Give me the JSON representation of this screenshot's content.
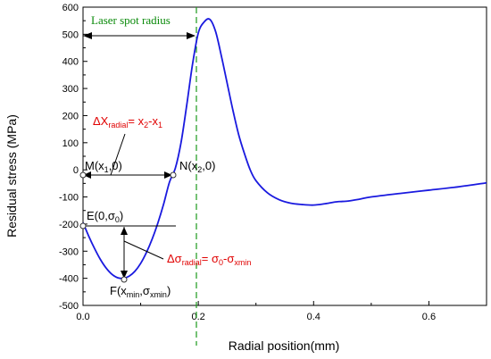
{
  "chart_data": {
    "type": "line",
    "xlabel": "Radial position(mm)",
    "ylabel": "Residual stress (MPa)",
    "xlim": [
      0,
      0.7
    ],
    "ylim": [
      -500,
      600
    ],
    "x_ticks": [
      "0.0",
      "0.2",
      "0.4",
      "0.6"
    ],
    "x_tick_values": [
      0.0,
      0.2,
      0.4,
      0.6
    ],
    "y_ticks": [
      "600",
      "500",
      "400",
      "300",
      "200",
      "100",
      "0",
      "-100",
      "-200",
      "-300",
      "-400",
      "-500"
    ],
    "y_tick_values": [
      600,
      500,
      400,
      300,
      200,
      100,
      0,
      -100,
      -200,
      -300,
      -400,
      -500
    ],
    "grid": false,
    "colors": {
      "series": "#1a1adf",
      "annotation_red": "#e00000",
      "laser_line": "#1a9a1a",
      "axis": "#000000"
    },
    "series": [
      {
        "x": [
          0.0,
          0.01,
          0.02,
          0.03,
          0.04,
          0.05,
          0.06,
          0.07,
          0.08,
          0.09,
          0.1,
          0.11,
          0.12,
          0.13,
          0.14,
          0.15,
          0.16,
          0.17,
          0.18,
          0.19,
          0.2,
          0.21,
          0.22,
          0.23,
          0.24,
          0.25,
          0.26,
          0.27,
          0.28,
          0.29,
          0.3,
          0.32,
          0.34,
          0.36,
          0.38,
          0.4,
          0.42,
          0.44,
          0.46,
          0.48,
          0.5,
          0.55,
          0.6,
          0.65,
          0.7
        ],
        "y": [
          -195,
          -245,
          -290,
          -330,
          -362,
          -385,
          -398,
          -400,
          -392,
          -374,
          -345,
          -305,
          -255,
          -195,
          -125,
          -45,
          5,
          100,
          240,
          390,
          505,
          545,
          555,
          510,
          420,
          320,
          220,
          130,
          60,
          0,
          -40,
          -85,
          -110,
          -123,
          -128,
          -130,
          -125,
          -118,
          -115,
          -108,
          -100,
          -87,
          -75,
          -63,
          -48
        ]
      }
    ],
    "annotations": {
      "laser_spot": {
        "label": "Laser spot radius",
        "x": 0.2
      },
      "delta_x": {
        "prefix": "ΔX",
        "prefix_sub": "radial",
        "eq": "= x",
        "x2_sub": "2",
        "mid": "-x",
        "x1_sub": "1"
      },
      "point_m": {
        "label": "M(x",
        "sub": "1",
        "tail": ",0)",
        "x": 0.0,
        "y": 0
      },
      "point_n": {
        "label": "N(x",
        "sub": "2",
        "tail": ",0)",
        "x": 0.16,
        "y": 0
      },
      "point_e": {
        "label": "E(0,σ",
        "sub": "0",
        "tail": ")",
        "x": 0.0,
        "y": -195
      },
      "point_f": {
        "label": "F(x",
        "sub1": "min",
        "mid": ",σ",
        "sub2": "xmin",
        "tail": ")",
        "x": 0.07,
        "y": -400
      },
      "delta_sigma": {
        "prefix": "Δσ",
        "prefix_sub": "radial",
        "eq": "= σ",
        "s0_sub": "0",
        "mid": "-σ",
        "smin_sub": "xmin"
      }
    }
  }
}
